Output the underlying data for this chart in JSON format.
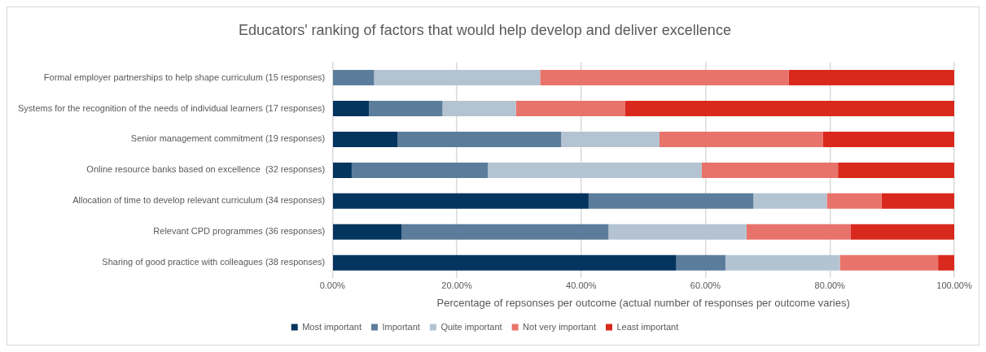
{
  "chart_data": {
    "type": "bar",
    "orientation": "horizontal",
    "stacked": true,
    "title": "Educators' ranking of factors that would help develop and deliver excellence",
    "xlabel": "Percentage of repsonses per outcome (actual number of responses per outcome varies)",
    "categories": [
      "Formal employer partnerships to help shape curriculum (15 responses)",
      "Systems for the recognition of the needs of individual learners (17 responses)",
      "Senior management commitment (19 responses)",
      "Online resource banks based on excellence  (32 responses)",
      "Allocation of time to develop relevant curriculum (34 responses)",
      "Relevant CPD programmes (36 responses)",
      "Sharing of good practice with colleagues (38 responses)"
    ],
    "series": [
      {
        "name": "Most important",
        "color": "#03355f",
        "values": [
          0,
          5.9,
          10.5,
          3.1,
          41.2,
          11.1,
          55.3
        ]
      },
      {
        "name": "Important",
        "color": "#5b7d9b",
        "values": [
          6.7,
          11.8,
          26.3,
          21.9,
          26.5,
          33.3,
          7.9
        ]
      },
      {
        "name": "Quite important",
        "color": "#b4c3d2",
        "values": [
          26.7,
          11.8,
          15.8,
          34.4,
          11.8,
          22.2,
          18.4
        ]
      },
      {
        "name": "Not very important",
        "color": "#e8736b",
        "values": [
          40,
          17.6,
          26.3,
          21.9,
          8.8,
          16.7,
          15.8
        ]
      },
      {
        "name": "Least important",
        "color": "#d9291e",
        "values": [
          26.6,
          52.9,
          21.1,
          18.7,
          11.7,
          16.7,
          2.6
        ]
      }
    ],
    "xlim": [
      0,
      100
    ],
    "xticks": [
      {
        "value": 0,
        "label": "0.00%"
      },
      {
        "value": 20,
        "label": "20.00%"
      },
      {
        "value": 40,
        "label": "40.00%"
      },
      {
        "value": 60,
        "label": "60.00%"
      },
      {
        "value": 80,
        "label": "80.00%"
      },
      {
        "value": 100,
        "label": "100.00%"
      }
    ],
    "grid": "x",
    "legend": "bottom"
  }
}
